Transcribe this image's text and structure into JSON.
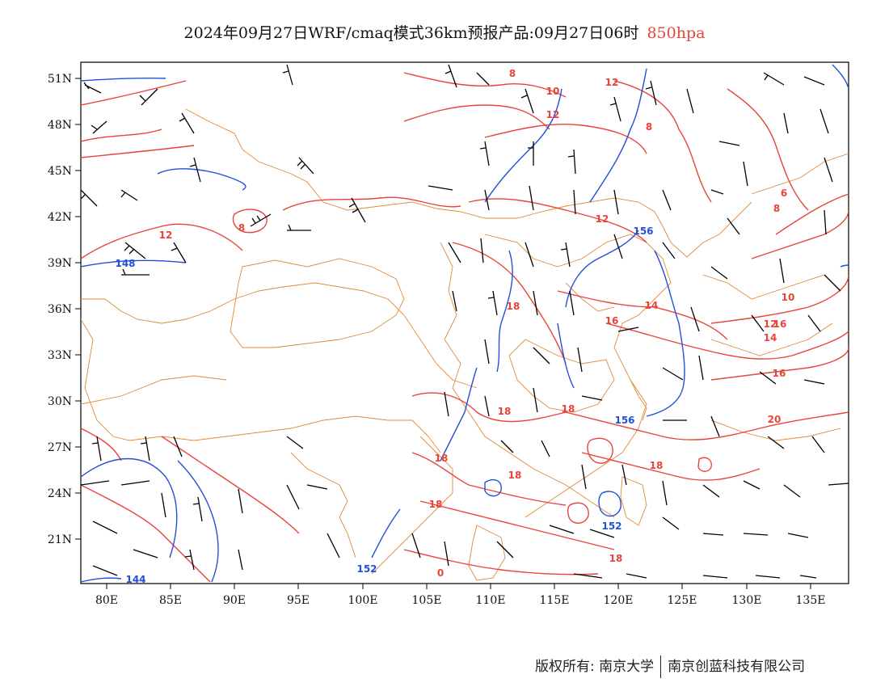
{
  "title": {
    "main": "2024年09月27日WRF/cmaq模式36km预报产品:09月27日06时",
    "level": "850hpa",
    "level_color": "#e8443a"
  },
  "map": {
    "lon_labels": [
      "80E",
      "85E",
      "90E",
      "95E",
      "100E",
      "105E",
      "110E",
      "115E",
      "120E",
      "125E",
      "130E",
      "135E"
    ],
    "lat_labels": [
      "51N",
      "48N",
      "45N",
      "42N",
      "39N",
      "36N",
      "33N",
      "30N",
      "27N",
      "24N",
      "21N"
    ],
    "temperature_labels": [
      "8",
      "10",
      "12",
      "12",
      "8",
      "12",
      "6",
      "8",
      "8",
      "12",
      "16",
      "14",
      "16",
      "10",
      "12",
      "14",
      "16",
      "18",
      "18",
      "18",
      "20",
      "18",
      "18",
      "18",
      "18",
      "18",
      "0"
    ],
    "height_labels": [
      "148",
      "156",
      "156",
      "152",
      "152",
      "144"
    ],
    "colors": {
      "temperature_contour": "#e8443a",
      "height_contour": "#2250d8",
      "border": "#e08a3a",
      "wind_barb": "#000000"
    }
  },
  "footer": {
    "left": "版权所有: 南京大学",
    "right": "南京创蓝科技有限公司"
  }
}
